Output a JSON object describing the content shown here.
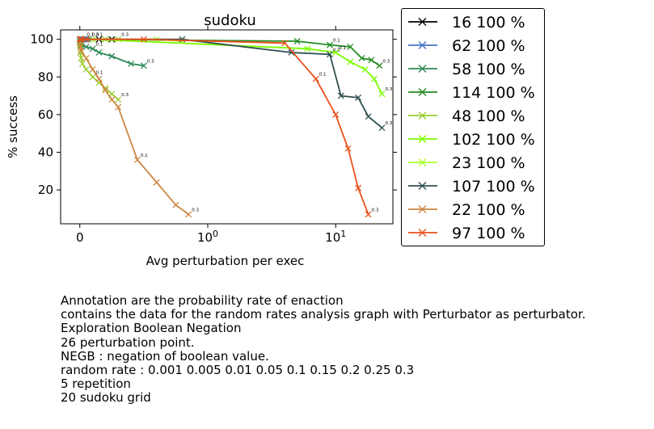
{
  "chart_data": {
    "type": "line",
    "title": "sudoku",
    "xlabel": "Avg perturbation per exec",
    "ylabel": "% success",
    "xscale": "symlog",
    "xlim": [
      -0.15,
      28
    ],
    "ylim": [
      2,
      105
    ],
    "xticks": [
      {
        "value": 0,
        "label": "0"
      },
      {
        "value": 1,
        "label": "10^0"
      },
      {
        "value": 10,
        "label": "10^1"
      }
    ],
    "yticks": [
      20,
      40,
      60,
      80,
      100
    ],
    "legend_position": "outside-right",
    "series": [
      {
        "name": "16 100 %",
        "color": "#000000",
        "x": [
          0.001,
          0.005,
          0.01,
          0.05,
          0.1,
          0.15,
          0.2,
          0.25,
          0.3
        ],
        "y": [
          100,
          100,
          100,
          100,
          100,
          100,
          100,
          100,
          100
        ],
        "annotations": [
          {
            "index": 4,
            "text": "0.1"
          },
          {
            "index": 8,
            "text": "0.3"
          }
        ]
      },
      {
        "name": "62 100 %",
        "color": "#4472c4",
        "x": [
          0.001,
          0.005,
          0.01,
          0.02,
          0.03,
          0.04,
          0.05,
          0.06,
          0.07
        ],
        "y": [
          100,
          100,
          100,
          100,
          100,
          100,
          100,
          100,
          100
        ],
        "annotations": [
          {
            "index": 4,
            "text": "0.1"
          },
          {
            "index": 8,
            "text": "0.3"
          }
        ]
      },
      {
        "name": "58 100 %",
        "color": "#2e8b57",
        "x": [
          0.001,
          0.005,
          0.01,
          0.05,
          0.1,
          0.15,
          0.25,
          0.4,
          0.5
        ],
        "y": [
          99,
          98,
          97,
          96,
          95,
          93,
          91,
          87,
          86
        ],
        "annotations": [
          {
            "index": 4,
            "text": "0.1"
          },
          {
            "index": 8,
            "text": "0.3"
          }
        ]
      },
      {
        "name": "114 100 %",
        "color": "#228b22",
        "x": [
          0.001,
          0.005,
          0.01,
          0.05,
          5,
          9,
          13,
          16,
          19,
          22
        ],
        "y": [
          100,
          100,
          100,
          100,
          99,
          97,
          96,
          90,
          89,
          86
        ],
        "annotations": [
          {
            "index": 5,
            "text": "0.1"
          },
          {
            "index": 9,
            "text": "0.3"
          }
        ]
      },
      {
        "name": "48 100 %",
        "color": "#9acd32",
        "x": [
          0.001,
          0.005,
          0.01,
          0.02,
          0.05,
          0.1,
          0.15,
          0.2,
          0.25,
          0.3
        ],
        "y": [
          97,
          93,
          90,
          87,
          84,
          80,
          77,
          74,
          71,
          68
        ],
        "annotations": [
          {
            "index": 5,
            "text": "0.1"
          },
          {
            "index": 9,
            "text": "0.3"
          }
        ]
      },
      {
        "name": "102 100 %",
        "color": "#7cfc00",
        "x": [
          0.001,
          0.005,
          0.01,
          0.05,
          0.1,
          6,
          10,
          13,
          17,
          20,
          23
        ],
        "y": [
          100,
          100,
          100,
          100,
          100,
          95,
          93,
          88,
          84,
          79,
          71
        ],
        "annotations": [
          {
            "index": 6,
            "text": "0.1"
          },
          {
            "index": 10,
            "text": "0.3"
          }
        ]
      },
      {
        "name": "23 100 %",
        "color": "#adff2f",
        "x": [
          0.001,
          0.005,
          0.01,
          0.05,
          0.1,
          0.2,
          0.3,
          0.6,
          0.8
        ],
        "y": [
          100,
          100,
          100,
          100,
          100,
          100,
          100,
          100,
          99
        ],
        "annotations": []
      },
      {
        "name": "107 100 %",
        "color": "#2f4f4f",
        "x": [
          0.001,
          0.005,
          0.01,
          0.05,
          0.8,
          4.5,
          9,
          11,
          15,
          18,
          23
        ],
        "y": [
          100,
          100,
          100,
          100,
          100,
          93,
          92,
          70,
          69,
          59,
          53
        ],
        "annotations": [
          {
            "index": 6,
            "text": "0.1"
          },
          {
            "index": 10,
            "text": "0.3"
          }
        ]
      },
      {
        "name": "22 100 %",
        "color": "#cd853f",
        "x": [
          0.001,
          0.005,
          0.01,
          0.05,
          0.1,
          0.15,
          0.2,
          0.25,
          0.3,
          0.45,
          0.6,
          0.75,
          0.85
        ],
        "y": [
          98,
          96,
          94,
          90,
          84,
          79,
          73,
          68,
          64,
          36,
          24,
          12,
          7
        ],
        "annotations": [
          {
            "index": 9,
            "text": "0.1"
          },
          {
            "index": 12,
            "text": "0.3"
          }
        ]
      },
      {
        "name": "97 100 %",
        "color": "#e8501a",
        "x": [
          0.001,
          0.005,
          0.01,
          0.05,
          0.5,
          4,
          7,
          10,
          12.5,
          15,
          18
        ],
        "y": [
          100,
          100,
          100,
          100,
          100,
          98,
          79,
          60,
          42,
          21,
          7
        ],
        "annotations": [
          {
            "index": 6,
            "text": "0.1"
          },
          {
            "index": 10,
            "text": "0.3"
          }
        ]
      }
    ]
  },
  "caption_lines": [
    "Annotation are the probability rate of enaction",
    "contains the data for the random rates analysis graph with Perturbator as perturbator.",
    "Exploration Boolean Negation",
    "26 perturbation point.",
    "NEGB : negation of boolean value.",
    "random rate : 0.001 0.005 0.01 0.05 0.1 0.15 0.2 0.25 0.3",
    "5 repetition",
    "20 sudoku grid"
  ]
}
